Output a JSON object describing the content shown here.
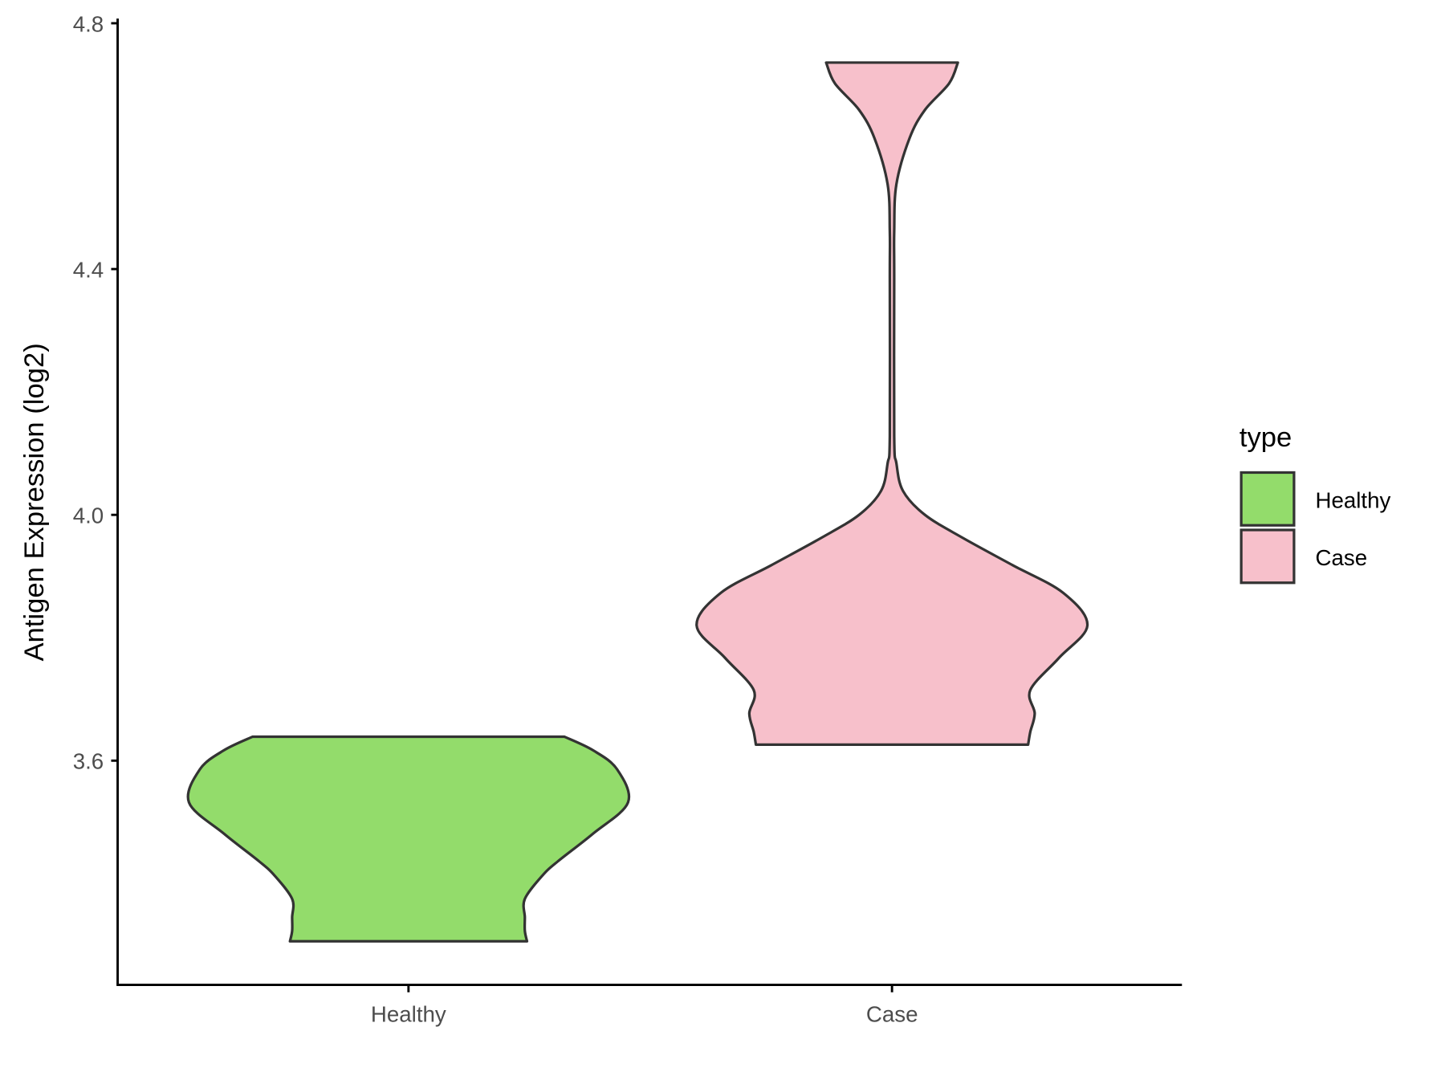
{
  "chart_data": {
    "type": "violin",
    "title": "",
    "xlabel": "",
    "ylabel": "Antigen Expression (log2)",
    "ylim": [
      3.235,
      4.808
    ],
    "yticks": [
      "3.6",
      "4.0",
      "4.4",
      "4.8"
    ],
    "categories": [
      "Healthy",
      "Case"
    ],
    "grid": false,
    "legend": {
      "title": "type",
      "position": "right",
      "entries": [
        "Healthy",
        "Case"
      ]
    },
    "colors": {
      "Healthy": "#93dc6b",
      "Case": "#f7c0cb",
      "outline": "#333333"
    },
    "series": [
      {
        "name": "Healthy",
        "min": 3.306,
        "max": 3.639,
        "profile_values": [
          3.639,
          3.617,
          3.586,
          3.532,
          3.481,
          3.436,
          3.413,
          3.375,
          3.345,
          3.323,
          3.306
        ],
        "relative_density": [
          0.71,
          0.84,
          0.95,
          1.0,
          0.84,
          0.68,
          0.61,
          0.53,
          0.53,
          0.53,
          0.54
        ]
      },
      {
        "name": "Case",
        "min": 3.626,
        "max": 4.736,
        "profile_values": [
          4.736,
          4.702,
          4.659,
          4.613,
          4.538,
          4.461,
          4.386,
          4.129,
          4.084,
          4.039,
          4.0,
          3.963,
          3.918,
          3.873,
          3.82,
          3.767,
          3.715,
          3.677,
          3.647,
          3.626
        ],
        "relative_density": [
          0.3,
          0.26,
          0.15,
          0.08,
          0.02,
          0.01,
          0.01,
          0.01,
          0.02,
          0.05,
          0.15,
          0.32,
          0.55,
          0.78,
          0.89,
          0.76,
          0.63,
          0.65,
          0.63,
          0.62
        ]
      }
    ]
  }
}
